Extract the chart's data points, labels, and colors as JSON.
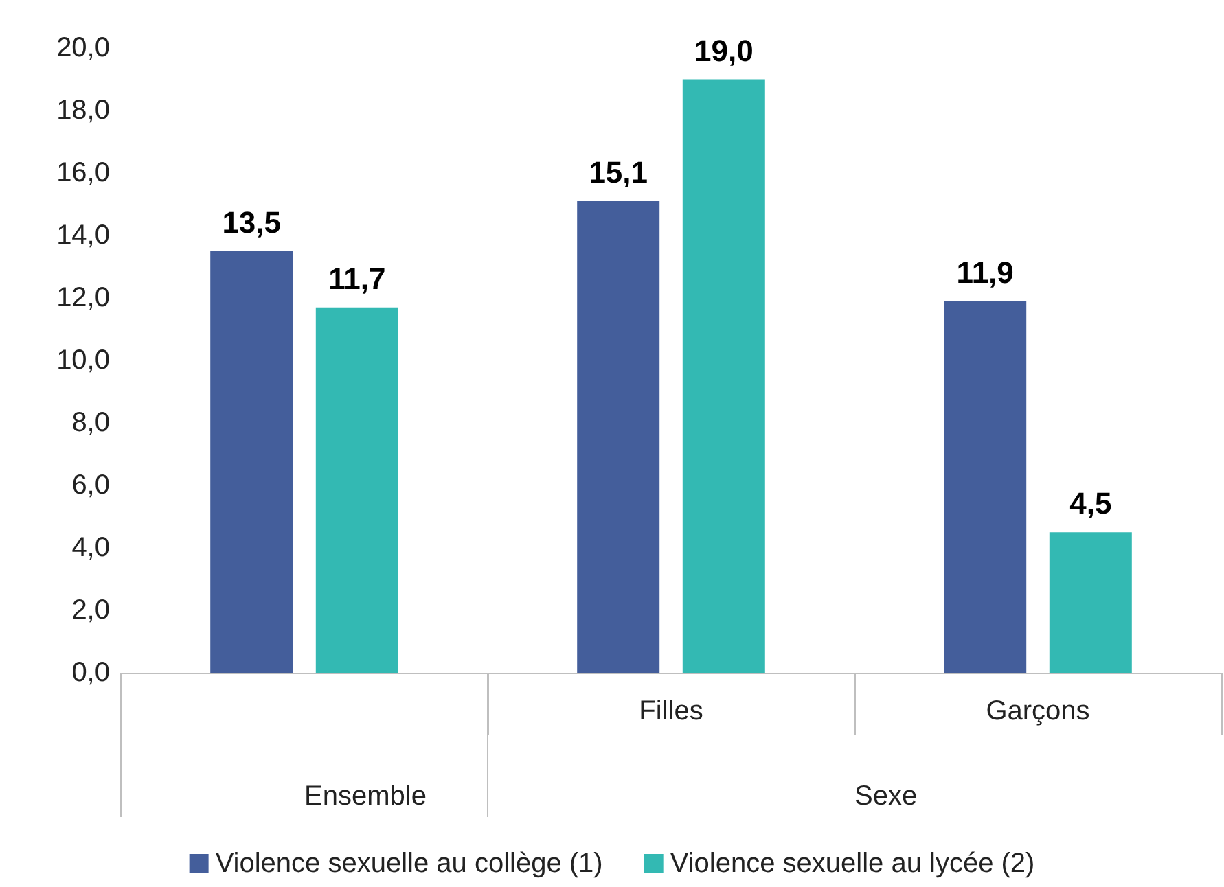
{
  "chart_data": {
    "type": "bar",
    "categories": [
      null,
      "Filles",
      "Garçons"
    ],
    "annotations": [
      "Ensemble",
      "Sexe"
    ],
    "series": [
      {
        "name": "Violence sexuelle au collège (1)",
        "color": "#445e9b",
        "values": [
          13.5,
          15.1,
          11.9
        ],
        "value_labels": [
          "13,5",
          "15,1",
          "11,9"
        ]
      },
      {
        "name": "Violence sexuelle au lycée (2)",
        "color": "#33b9b3",
        "values": [
          11.7,
          19.0,
          4.5
        ],
        "value_labels": [
          "11,7",
          "19,0",
          "4,5"
        ]
      }
    ],
    "ylim": [
      0,
      20
    ],
    "yticks": [
      {
        "value": 0,
        "label": "0,0"
      },
      {
        "value": 2,
        "label": "2,0"
      },
      {
        "value": 4,
        "label": "4,0"
      },
      {
        "value": 6,
        "label": "6,0"
      },
      {
        "value": 8,
        "label": "8,0"
      },
      {
        "value": 10,
        "label": "10,0"
      },
      {
        "value": 12,
        "label": "12,0"
      },
      {
        "value": 14,
        "label": "14,0"
      },
      {
        "value": 16,
        "label": "16,0"
      },
      {
        "value": 18,
        "label": "18,0"
      },
      {
        "value": 20,
        "label": "20,0"
      }
    ],
    "grid": false,
    "legend": "bottom"
  }
}
